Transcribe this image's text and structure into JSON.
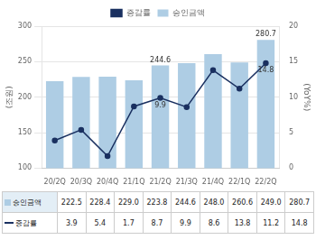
{
  "chart_data": {
    "type": "bar",
    "categories": [
      "20/2Q",
      "20/3Q",
      "20/4Q",
      "21/1Q",
      "21/2Q",
      "21/3Q",
      "21/4Q",
      "22/1Q",
      "22/2Q"
    ],
    "series": [
      {
        "name": "승인금액",
        "type": "bar",
        "color": "#aecde4",
        "values": [
          222.5,
          228.4,
          229.0,
          223.8,
          244.6,
          248.0,
          260.6,
          249.0,
          280.7
        ]
      },
      {
        "name": "증감률",
        "type": "line",
        "color": "#1a3060",
        "marker": "circle",
        "axis": "y2",
        "values": [
          3.9,
          5.4,
          1.7,
          8.7,
          9.9,
          8.6,
          13.8,
          11.2,
          14.8
        ]
      }
    ],
    "y_label": "(조원)",
    "y2_label": "(YoY%)",
    "ylim": [
      100,
      300
    ],
    "yticks": [
      100,
      150,
      200,
      250,
      300
    ],
    "y2lim": [
      0,
      20
    ],
    "y2ticks": [
      0,
      5,
      10,
      15,
      20
    ],
    "grid": true,
    "legend": "top",
    "annotations": [
      {
        "text": "244.6",
        "x": "21/2Q",
        "y": 244.6
      },
      {
        "text": "280.7",
        "x": "22/2Q",
        "y": 280.7
      },
      {
        "text": "9.9",
        "x": "21/2Q",
        "y": 9.9,
        "axis": "y2"
      },
      {
        "text": "14.8",
        "x": "22/2Q",
        "y": 14.8,
        "axis": "y2"
      }
    ],
    "table": {
      "rows": [
        {
          "name": "승인금액",
          "values": [
            "222.5",
            "228.4",
            "229.0",
            "223.8",
            "244.6",
            "248.0",
            "260.6",
            "249.0",
            "280.7"
          ]
        },
        {
          "name": "증감률",
          "values": [
            "3.9",
            "5.4",
            "1.7",
            "8.7",
            "9.9",
            "8.6",
            "13.8",
            "11.2",
            "14.8"
          ]
        }
      ]
    }
  }
}
